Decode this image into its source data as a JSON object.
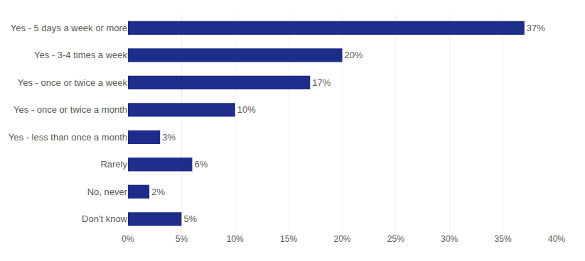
{
  "chart_data": {
    "type": "bar",
    "orientation": "horizontal",
    "categories": [
      "Yes - 5 days a week or more",
      "Yes - 3-4 times a week",
      "Yes - once or twice a week",
      "Yes - once or twice a month",
      "Yes - less than once a month",
      "Rarely",
      "No, never",
      "Don't know"
    ],
    "values": [
      37,
      20,
      17,
      10,
      3,
      6,
      2,
      5
    ],
    "value_labels": [
      "37%",
      "20%",
      "17%",
      "10%",
      "3%",
      "6%",
      "2%",
      "5%"
    ],
    "color": "#1F2D8A",
    "xlim": [
      0,
      40
    ],
    "xticks": [
      {
        "value": 0,
        "label": "0%"
      },
      {
        "value": 5,
        "label": "5%"
      },
      {
        "value": 10,
        "label": "10%"
      },
      {
        "value": 15,
        "label": "15%"
      },
      {
        "value": 20,
        "label": "20%"
      },
      {
        "value": 25,
        "label": "25%"
      },
      {
        "value": 30,
        "label": "30%"
      },
      {
        "value": 35,
        "label": "35%"
      },
      {
        "value": 40,
        "label": "40%"
      }
    ],
    "grid": true,
    "data_labels": true
  }
}
